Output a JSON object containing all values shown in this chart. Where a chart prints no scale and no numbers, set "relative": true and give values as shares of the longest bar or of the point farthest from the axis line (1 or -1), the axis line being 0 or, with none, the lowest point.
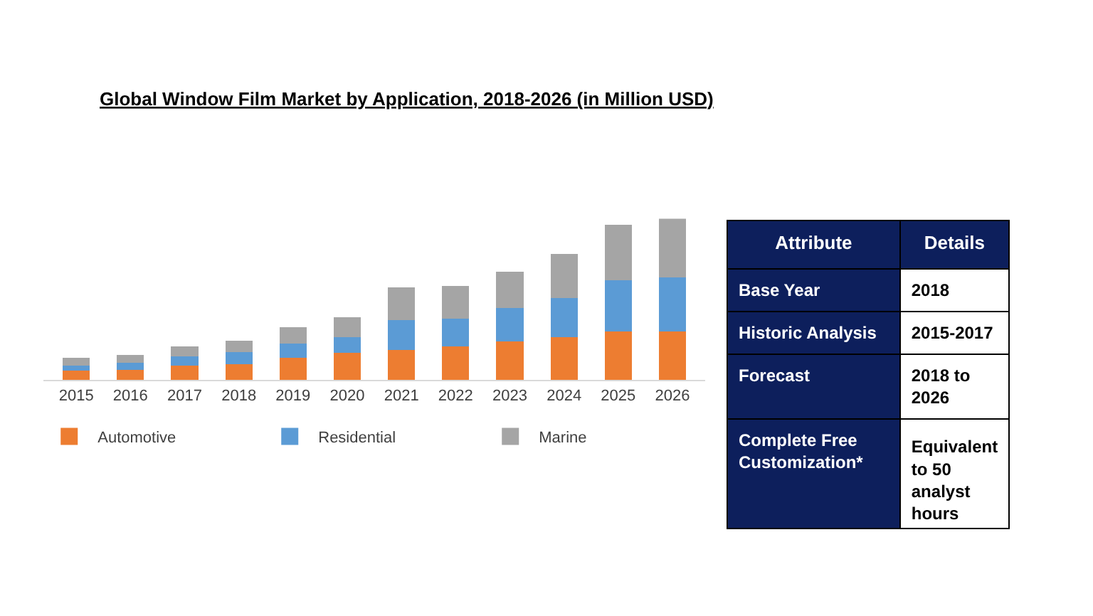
{
  "chart_data": [
    {
      "type": "bar",
      "title": "Global Window Film Market by Application, 2018-2026 (in Million USD)",
      "stacked": true,
      "relative": true,
      "legend": "bottom",
      "categories": [
        "2015",
        "2016",
        "2017",
        "2018",
        "2019",
        "2020",
        "2021",
        "2022",
        "2023",
        "2024",
        "2025",
        "2026"
      ],
      "series": [
        {
          "name": "Automotive",
          "color": "#ed7d31",
          "values": [
            0.058,
            0.064,
            0.091,
            0.1,
            0.136,
            0.167,
            0.185,
            0.209,
            0.239,
            0.264,
            0.3,
            0.3
          ]
        },
        {
          "name": "Residential",
          "color": "#5b9bd5",
          "values": [
            0.033,
            0.045,
            0.055,
            0.073,
            0.091,
            0.097,
            0.188,
            0.173,
            0.206,
            0.245,
            0.318,
            0.336
          ]
        },
        {
          "name": "Marine",
          "color": "#a5a5a5",
          "values": [
            0.045,
            0.045,
            0.064,
            0.073,
            0.1,
            0.127,
            0.2,
            0.2,
            0.227,
            0.273,
            0.345,
            0.364
          ]
        }
      ]
    },
    {
      "type": "other",
      "categories": [
        "Attribute",
        "Details"
      ],
      "cell_labels": [
        [
          "Base Year",
          "2018"
        ],
        [
          "Historic Analysis",
          "2015-2017"
        ],
        [
          "Forecast",
          "2018 to 2026"
        ],
        [
          "Complete Free Customization*",
          "Equivalent to 50 analyst hours"
        ]
      ]
    }
  ]
}
